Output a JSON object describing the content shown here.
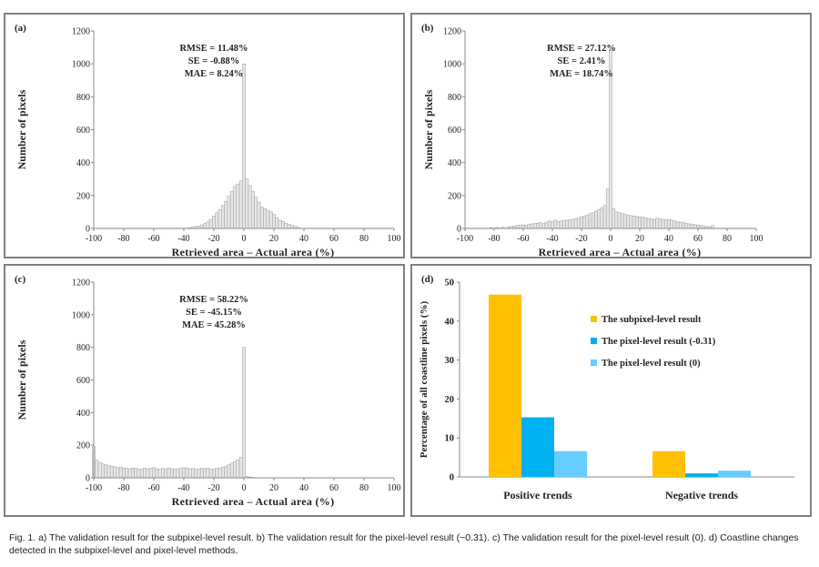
{
  "caption": "Fig. 1. a) The validation result for the subpixel-level result. b) The validation result for the pixel-level result (−0.31). c) The validation result for the pixel-level result (0). d) Coastline changes detected in the subpixel-level and pixel-level methods.",
  "colors": {
    "hist_fill": "#e6e6e6",
    "hist_stroke": "#9c9c9c",
    "panel_border": "#808080"
  },
  "chart_data": [
    {
      "id": "a",
      "type": "bar",
      "panel_label": "(a)",
      "title": "",
      "xlabel": "Retrieved area – Actual area (%)",
      "ylabel": "Number of pixels",
      "xlim": [
        -100,
        100
      ],
      "ylim": [
        0,
        1200
      ],
      "grid": false,
      "xticks": [
        -100,
        -80,
        -60,
        -40,
        -20,
        0,
        20,
        40,
        60,
        80,
        100
      ],
      "yticks": [
        0,
        200,
        400,
        600,
        800,
        1000,
        1200
      ],
      "bin_width": 2,
      "stats": [
        "RMSE = 11.48%",
        "SE = -0.88%",
        "MAE = 8.24%"
      ],
      "bins": [
        [
          -36,
          5
        ],
        [
          -34,
          8
        ],
        [
          -32,
          12
        ],
        [
          -30,
          15
        ],
        [
          -28,
          22
        ],
        [
          -26,
          30
        ],
        [
          -24,
          40
        ],
        [
          -22,
          55
        ],
        [
          -20,
          75
        ],
        [
          -18,
          95
        ],
        [
          -16,
          115
        ],
        [
          -14,
          140
        ],
        [
          -12,
          165
        ],
        [
          -10,
          195
        ],
        [
          -8,
          225
        ],
        [
          -6,
          255
        ],
        [
          -4,
          270
        ],
        [
          -2,
          290
        ],
        [
          0,
          1000
        ],
        [
          2,
          300
        ],
        [
          4,
          260
        ],
        [
          6,
          225
        ],
        [
          8,
          190
        ],
        [
          10,
          160
        ],
        [
          12,
          130
        ],
        [
          14,
          120
        ],
        [
          16,
          110
        ],
        [
          18,
          100
        ],
        [
          20,
          85
        ],
        [
          22,
          65
        ],
        [
          24,
          50
        ],
        [
          26,
          42
        ],
        [
          28,
          32
        ],
        [
          30,
          25
        ],
        [
          32,
          18
        ],
        [
          34,
          12
        ],
        [
          36,
          8
        ]
      ]
    },
    {
      "id": "b",
      "type": "bar",
      "panel_label": "(b)",
      "title": "",
      "xlabel": "Retrieved area – Actual area (%)",
      "ylabel": "Number of pixels",
      "xlim": [
        -100,
        100
      ],
      "ylim": [
        0,
        1200
      ],
      "grid": false,
      "xticks": [
        -100,
        -80,
        -60,
        -40,
        -20,
        0,
        20,
        40,
        60,
        80,
        100
      ],
      "yticks": [
        0,
        200,
        400,
        600,
        800,
        1000,
        1200
      ],
      "bin_width": 2,
      "stats": [
        "RMSE = 27.12%",
        "SE = 2.41%",
        "MAE = 18.74%"
      ],
      "bins": [
        [
          -82,
          5
        ],
        [
          -78,
          6
        ],
        [
          -74,
          8
        ],
        [
          -70,
          10
        ],
        [
          -68,
          12
        ],
        [
          -66,
          15
        ],
        [
          -64,
          18
        ],
        [
          -62,
          20
        ],
        [
          -60,
          22
        ],
        [
          -58,
          20
        ],
        [
          -56,
          25
        ],
        [
          -54,
          28
        ],
        [
          -52,
          30
        ],
        [
          -50,
          32
        ],
        [
          -48,
          35
        ],
        [
          -46,
          30
        ],
        [
          -44,
          38
        ],
        [
          -42,
          45
        ],
        [
          -40,
          40
        ],
        [
          -38,
          50
        ],
        [
          -36,
          42
        ],
        [
          -34,
          45
        ],
        [
          -32,
          48
        ],
        [
          -30,
          50
        ],
        [
          -28,
          52
        ],
        [
          -26,
          55
        ],
        [
          -24,
          60
        ],
        [
          -22,
          62
        ],
        [
          -20,
          70
        ],
        [
          -18,
          75
        ],
        [
          -16,
          80
        ],
        [
          -14,
          90
        ],
        [
          -12,
          95
        ],
        [
          -10,
          105
        ],
        [
          -8,
          115
        ],
        [
          -6,
          125
        ],
        [
          -4,
          140
        ],
        [
          -2,
          240
        ],
        [
          0,
          1080
        ],
        [
          2,
          120
        ],
        [
          4,
          100
        ],
        [
          6,
          95
        ],
        [
          8,
          90
        ],
        [
          10,
          85
        ],
        [
          12,
          80
        ],
        [
          14,
          78
        ],
        [
          16,
          75
        ],
        [
          18,
          72
        ],
        [
          20,
          70
        ],
        [
          22,
          68
        ],
        [
          24,
          65
        ],
        [
          26,
          60
        ],
        [
          28,
          58
        ],
        [
          30,
          55
        ],
        [
          32,
          62
        ],
        [
          34,
          58
        ],
        [
          36,
          55
        ],
        [
          38,
          52
        ],
        [
          40,
          55
        ],
        [
          42,
          50
        ],
        [
          44,
          45
        ],
        [
          46,
          40
        ],
        [
          48,
          38
        ],
        [
          50,
          35
        ],
        [
          52,
          30
        ],
        [
          54,
          28
        ],
        [
          56,
          25
        ],
        [
          58,
          22
        ],
        [
          60,
          20
        ],
        [
          62,
          18
        ],
        [
          64,
          15
        ],
        [
          66,
          12
        ],
        [
          68,
          10
        ],
        [
          70,
          18
        ]
      ]
    },
    {
      "id": "c",
      "type": "bar",
      "panel_label": "(c)",
      "title": "",
      "xlabel": "Retrieved area – Actual area (%)",
      "ylabel": "Number of pixels",
      "xlim": [
        -100,
        100
      ],
      "ylim": [
        0,
        1200
      ],
      "grid": false,
      "xticks": [
        -100,
        -80,
        -60,
        -40,
        -20,
        0,
        20,
        40,
        60,
        80,
        100
      ],
      "yticks": [
        0,
        200,
        400,
        600,
        800,
        1000,
        1200
      ],
      "bin_width": 2,
      "stats": [
        "RMSE = 58.22%",
        "SE = -45.15%",
        "MAE = 45.28%"
      ],
      "bins": [
        [
          -100,
          190
        ],
        [
          -98,
          110
        ],
        [
          -96,
          95
        ],
        [
          -94,
          85
        ],
        [
          -92,
          80
        ],
        [
          -90,
          75
        ],
        [
          -88,
          70
        ],
        [
          -86,
          68
        ],
        [
          -84,
          62
        ],
        [
          -82,
          65
        ],
        [
          -80,
          60
        ],
        [
          -78,
          58
        ],
        [
          -76,
          55
        ],
        [
          -74,
          60
        ],
        [
          -72,
          58
        ],
        [
          -70,
          55
        ],
        [
          -68,
          52
        ],
        [
          -66,
          60
        ],
        [
          -64,
          55
        ],
        [
          -62,
          58
        ],
        [
          -60,
          62
        ],
        [
          -58,
          55
        ],
        [
          -56,
          52
        ],
        [
          -54,
          58
        ],
        [
          -52,
          55
        ],
        [
          -50,
          60
        ],
        [
          -48,
          55
        ],
        [
          -46,
          52
        ],
        [
          -44,
          55
        ],
        [
          -42,
          58
        ],
        [
          -40,
          62
        ],
        [
          -38,
          60
        ],
        [
          -36,
          55
        ],
        [
          -34,
          58
        ],
        [
          -32,
          52
        ],
        [
          -30,
          55
        ],
        [
          -28,
          58
        ],
        [
          -26,
          55
        ],
        [
          -24,
          60
        ],
        [
          -22,
          52
        ],
        [
          -20,
          55
        ],
        [
          -18,
          58
        ],
        [
          -16,
          60
        ],
        [
          -14,
          65
        ],
        [
          -12,
          70
        ],
        [
          -10,
          80
        ],
        [
          -8,
          90
        ],
        [
          -6,
          100
        ],
        [
          -4,
          110
        ],
        [
          -2,
          125
        ],
        [
          0,
          800
        ],
        [
          2,
          10
        ],
        [
          4,
          5
        ],
        [
          6,
          3
        ]
      ]
    },
    {
      "id": "d",
      "type": "bar",
      "panel_label": "(d)",
      "title": "",
      "xlabel": "",
      "ylabel": "Percentage of all coastline pixels (%)",
      "ylim": [
        0,
        50
      ],
      "yticks": [
        0,
        10,
        20,
        30,
        40,
        50
      ],
      "grid": false,
      "categories": [
        "Positive trends",
        "Negative trends"
      ],
      "series": [
        {
          "name": "The subpixel-level result",
          "color": "#FFC000",
          "values": [
            46.8,
            6.6
          ]
        },
        {
          "name": "The pixel-level result (-0.31)",
          "color": "#00B0F0",
          "values": [
            15.3,
            0.9
          ]
        },
        {
          "name": "The pixel-level result (0)",
          "color": "#66CCFF",
          "values": [
            6.6,
            1.6
          ]
        }
      ],
      "legend_position": "right"
    }
  ]
}
